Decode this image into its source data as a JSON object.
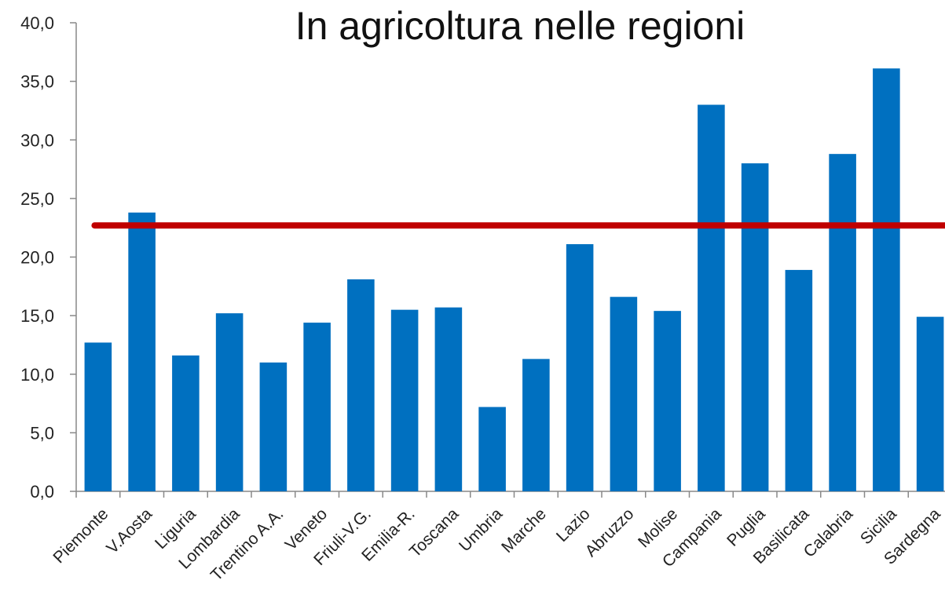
{
  "chart_data": {
    "type": "bar",
    "title": "In agricoltura nelle regioni",
    "xlabel": "",
    "ylabel": "",
    "ylim": [
      0,
      40
    ],
    "yticks": [
      "0,0",
      "5,0",
      "10,0",
      "15,0",
      "20,0",
      "25,0",
      "30,0",
      "35,0",
      "40,0"
    ],
    "categories": [
      "Piemonte",
      "V.Aosta",
      "Liguria",
      "Lombardia",
      "Trentino A.A.",
      "Veneto",
      "Friuli-V.G.",
      "Emilia-R.",
      "Toscana",
      "Umbria",
      "Marche",
      "Lazio",
      "Abruzzo",
      "Molise",
      "Campania",
      "Puglia",
      "Basilicata",
      "Calabria",
      "Sicilia",
      "Sardegna"
    ],
    "values": [
      12.7,
      23.8,
      11.6,
      15.2,
      11.0,
      14.4,
      18.1,
      15.5,
      15.7,
      7.2,
      11.3,
      21.1,
      16.6,
      15.4,
      33.0,
      28.0,
      18.9,
      28.8,
      36.1,
      14.9
    ],
    "reference_line": 22.7,
    "colors": {
      "bar": "#0070C0",
      "reference_line": "#C00000"
    },
    "grid": false,
    "legend": "none"
  }
}
